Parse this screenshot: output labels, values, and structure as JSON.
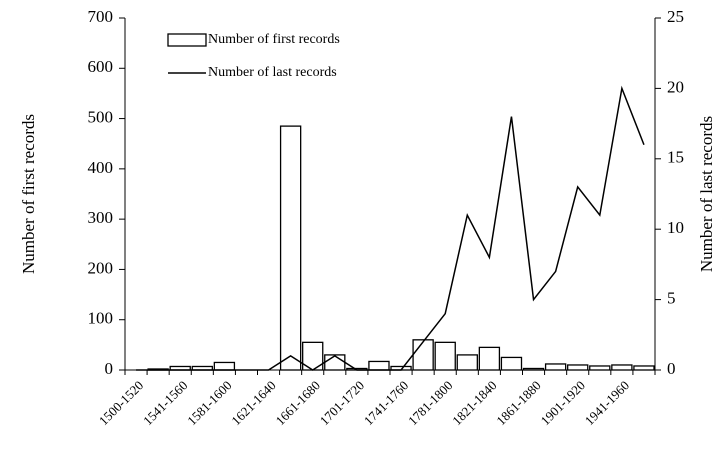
{
  "chart_data": {
    "type": "bar_line",
    "categories": [
      "1500-1520",
      null,
      "1541-1560",
      null,
      "1581-1600",
      null,
      "1621-1640",
      null,
      "1661-1680",
      null,
      "1701-1720",
      null,
      "1741-1760",
      null,
      "1781-1800",
      null,
      "1821-1840",
      null,
      "1861-1880",
      null,
      "1901-1920",
      null,
      "1941-1960",
      null
    ],
    "series": [
      {
        "name": "Number of first records",
        "type": "bar",
        "color": "#ffffff",
        "values": [
          0,
          2,
          7,
          7,
          15,
          0,
          0,
          485,
          55,
          30,
          3,
          17,
          7,
          60,
          55,
          30,
          45,
          25,
          3,
          12,
          10,
          8,
          10,
          8
        ]
      },
      {
        "name": "Number of last records",
        "type": "line",
        "axis": "y2",
        "color": "#000000",
        "values": [
          0,
          0,
          0,
          0,
          0,
          0,
          0,
          1,
          0,
          1,
          0,
          0,
          0,
          2,
          4,
          11,
          8,
          18,
          5,
          7,
          13,
          11,
          20,
          16
        ]
      }
    ],
    "ylabel": "Number of first records",
    "y2label": "Number of last records",
    "ylim": [
      0,
      700
    ],
    "yticks": [
      0,
      100,
      200,
      300,
      400,
      500,
      600,
      700
    ],
    "y2lim": [
      0,
      25
    ],
    "y2ticks": [
      0,
      5,
      10,
      15,
      20,
      25
    ]
  }
}
